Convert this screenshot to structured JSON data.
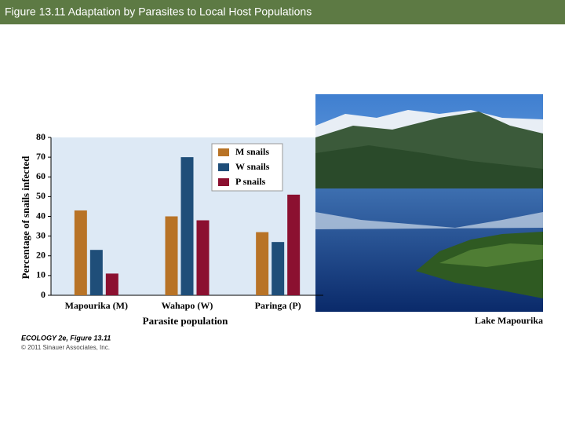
{
  "header": {
    "title": "Figure 13.11  Adaptation by Parasites to Local Host Populations"
  },
  "chart_data": {
    "type": "bar",
    "ylabel": "Percentage of snails infected",
    "xlabel": "Parasite population",
    "categories": [
      "Mapourika (M)",
      "Wahapo (W)",
      "Paringa (P)"
    ],
    "series": [
      {
        "name": "M snails",
        "color": "#b87326",
        "values": [
          43,
          40,
          32
        ]
      },
      {
        "name": "W snails",
        "color": "#1f4e79",
        "values": [
          23,
          70,
          27
        ]
      },
      {
        "name": "P snails",
        "color": "#8b1030",
        "values": [
          11,
          38,
          51
        ]
      }
    ],
    "ylim": [
      0,
      80
    ],
    "yticks": [
      0,
      10,
      20,
      30,
      40,
      50,
      60,
      70,
      80
    ],
    "legend": "upper-right"
  },
  "photo": {
    "caption": "Lake Mapourika"
  },
  "credit": {
    "book": "ECOLOGY 2e, Figure 13.11",
    "copyright": "© 2011 Sinauer Associates, Inc."
  }
}
